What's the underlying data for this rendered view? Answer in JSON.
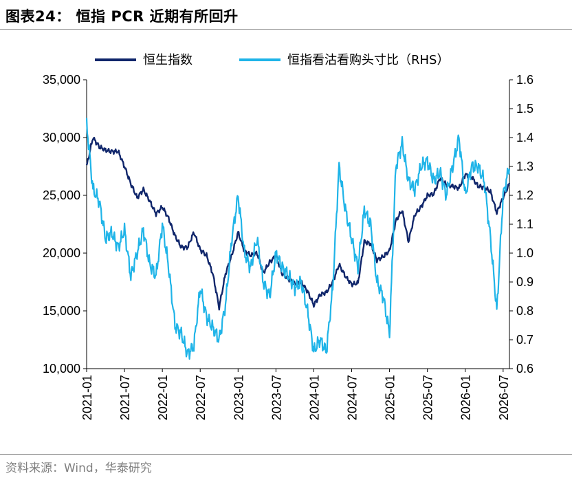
{
  "figure": {
    "title": "图表24： 恒指 PCR 近期有所回升",
    "source": "资料来源：Wind，华泰研究"
  },
  "chart_data": {
    "type": "line",
    "title": "",
    "xlabel": "",
    "ylabel": "",
    "ylim": [
      10000,
      35000
    ],
    "y2lim": [
      0.6,
      1.6
    ],
    "y_ticks": [
      "35,000",
      "30,000",
      "25,000",
      "20,000",
      "15,000",
      "10,000"
    ],
    "y2_ticks": [
      "1.6",
      "1.5",
      "1.4",
      "1.3",
      "1.2",
      "1.1",
      "1.0",
      "0.9",
      "0.8",
      "0.7",
      "0.6"
    ],
    "x_ticks": [
      "2021-01",
      "2021-07",
      "2022-01",
      "2022-07",
      "2023-01",
      "2023-07",
      "2024-01",
      "2024-07",
      "2025-01",
      "2025-07",
      "2026-01",
      "2026-07"
    ],
    "x_range": [
      "2021-01",
      "2026-08"
    ],
    "grid": false,
    "legend_position": "top",
    "series": [
      {
        "name": "恒生指数",
        "axis": "left",
        "color": "#10266b",
        "points": [
          [
            "2021-01",
            27500
          ],
          [
            "2021-02",
            30000
          ],
          [
            "2021-03",
            29200
          ],
          [
            "2021-04",
            28900
          ],
          [
            "2021-05",
            28800
          ],
          [
            "2021-06",
            28800
          ],
          [
            "2021-07",
            27500
          ],
          [
            "2021-08",
            26000
          ],
          [
            "2021-09",
            24800
          ],
          [
            "2021-10",
            25500
          ],
          [
            "2021-11",
            24500
          ],
          [
            "2021-12",
            23400
          ],
          [
            "2022-01",
            24000
          ],
          [
            "2022-02",
            23000
          ],
          [
            "2022-03",
            21500
          ],
          [
            "2022-04",
            20500
          ],
          [
            "2022-05",
            20500
          ],
          [
            "2022-06",
            21800
          ],
          [
            "2022-07",
            20300
          ],
          [
            "2022-08",
            19800
          ],
          [
            "2022-09",
            18200
          ],
          [
            "2022-10",
            15300
          ],
          [
            "2022-11",
            18200
          ],
          [
            "2022-12",
            19800
          ],
          [
            "2023-01",
            21800
          ],
          [
            "2023-02",
            20200
          ],
          [
            "2023-03",
            19800
          ],
          [
            "2023-04",
            20000
          ],
          [
            "2023-05",
            18300
          ],
          [
            "2023-06",
            19200
          ],
          [
            "2023-07",
            19800
          ],
          [
            "2023-08",
            18200
          ],
          [
            "2023-09",
            17800
          ],
          [
            "2023-10",
            17300
          ],
          [
            "2023-11",
            17500
          ],
          [
            "2023-12",
            16700
          ],
          [
            "2024-01",
            15500
          ],
          [
            "2024-02",
            16400
          ],
          [
            "2024-03",
            16600
          ],
          [
            "2024-04",
            17500
          ],
          [
            "2024-05",
            19000
          ],
          [
            "2024-06",
            18000
          ],
          [
            "2024-07",
            17300
          ],
          [
            "2024-08",
            17400
          ],
          [
            "2024-09",
            21000
          ],
          [
            "2024-10",
            20800
          ],
          [
            "2024-11",
            19400
          ],
          [
            "2024-12",
            19700
          ],
          [
            "2025-01",
            20200
          ],
          [
            "2025-02",
            22800
          ],
          [
            "2025-03",
            23700
          ],
          [
            "2025-04",
            21000
          ],
          [
            "2025-05",
            23300
          ],
          [
            "2025-06",
            24000
          ],
          [
            "2025-07",
            25000
          ],
          [
            "2025-08",
            25100
          ],
          [
            "2025-09",
            26500
          ],
          [
            "2025-10",
            25900
          ],
          [
            "2025-11",
            25800
          ],
          [
            "2025-12",
            25600
          ],
          [
            "2026-01",
            26800
          ],
          [
            "2026-02",
            26600
          ],
          [
            "2026-03",
            25800
          ],
          [
            "2026-04",
            25700
          ],
          [
            "2026-05",
            25300
          ],
          [
            "2026-06",
            23500
          ],
          [
            "2026-07",
            24800
          ],
          [
            "2026-08",
            26000
          ]
        ]
      },
      {
        "name": "恒指看沽看购头寸比（RHS）",
        "axis": "right",
        "color": "#1fb4e8",
        "points": [
          [
            "2021-01",
            1.45
          ],
          [
            "2021-02",
            1.22
          ],
          [
            "2021-03",
            1.18
          ],
          [
            "2021-04",
            1.05
          ],
          [
            "2021-05",
            1.07
          ],
          [
            "2021-06",
            1.02
          ],
          [
            "2021-07",
            1.08
          ],
          [
            "2021-08",
            0.92
          ],
          [
            "2021-09",
            1.0
          ],
          [
            "2021-10",
            1.08
          ],
          [
            "2021-11",
            0.96
          ],
          [
            "2021-12",
            0.92
          ],
          [
            "2022-01",
            1.1
          ],
          [
            "2022-02",
            0.95
          ],
          [
            "2022-03",
            0.75
          ],
          [
            "2022-04",
            0.72
          ],
          [
            "2022-05",
            0.65
          ],
          [
            "2022-06",
            0.68
          ],
          [
            "2022-07",
            0.88
          ],
          [
            "2022-08",
            0.78
          ],
          [
            "2022-09",
            0.74
          ],
          [
            "2022-10",
            0.7
          ],
          [
            "2022-11",
            0.82
          ],
          [
            "2022-12",
            1.05
          ],
          [
            "2023-01",
            1.2
          ],
          [
            "2023-02",
            1.0
          ],
          [
            "2023-03",
            0.95
          ],
          [
            "2023-04",
            1.05
          ],
          [
            "2023-05",
            0.9
          ],
          [
            "2023-06",
            0.85
          ],
          [
            "2023-07",
            1.0
          ],
          [
            "2023-08",
            0.95
          ],
          [
            "2023-09",
            0.92
          ],
          [
            "2023-10",
            0.88
          ],
          [
            "2023-11",
            0.9
          ],
          [
            "2023-12",
            0.8
          ],
          [
            "2024-01",
            0.66
          ],
          [
            "2024-02",
            0.7
          ],
          [
            "2024-03",
            0.66
          ],
          [
            "2024-04",
            0.88
          ],
          [
            "2024-05",
            1.3
          ],
          [
            "2024-06",
            1.15
          ],
          [
            "2024-07",
            1.05
          ],
          [
            "2024-08",
            0.95
          ],
          [
            "2024-09",
            1.15
          ],
          [
            "2024-10",
            1.1
          ],
          [
            "2024-11",
            0.9
          ],
          [
            "2024-12",
            0.85
          ],
          [
            "2025-01",
            0.72
          ],
          [
            "2025-02",
            1.3
          ],
          [
            "2025-03",
            1.38
          ],
          [
            "2025-04",
            1.25
          ],
          [
            "2025-05",
            1.22
          ],
          [
            "2025-06",
            1.3
          ],
          [
            "2025-07",
            1.32
          ],
          [
            "2025-08",
            1.25
          ],
          [
            "2025-09",
            1.28
          ],
          [
            "2025-10",
            1.2
          ],
          [
            "2025-11",
            1.3
          ],
          [
            "2025-12",
            1.4
          ],
          [
            "2026-01",
            1.2
          ],
          [
            "2026-02",
            1.3
          ],
          [
            "2026-03",
            1.3
          ],
          [
            "2026-04",
            1.25
          ],
          [
            "2026-05",
            1.05
          ],
          [
            "2026-06",
            0.8
          ],
          [
            "2026-07",
            1.2
          ],
          [
            "2026-08",
            1.3
          ]
        ]
      }
    ]
  }
}
